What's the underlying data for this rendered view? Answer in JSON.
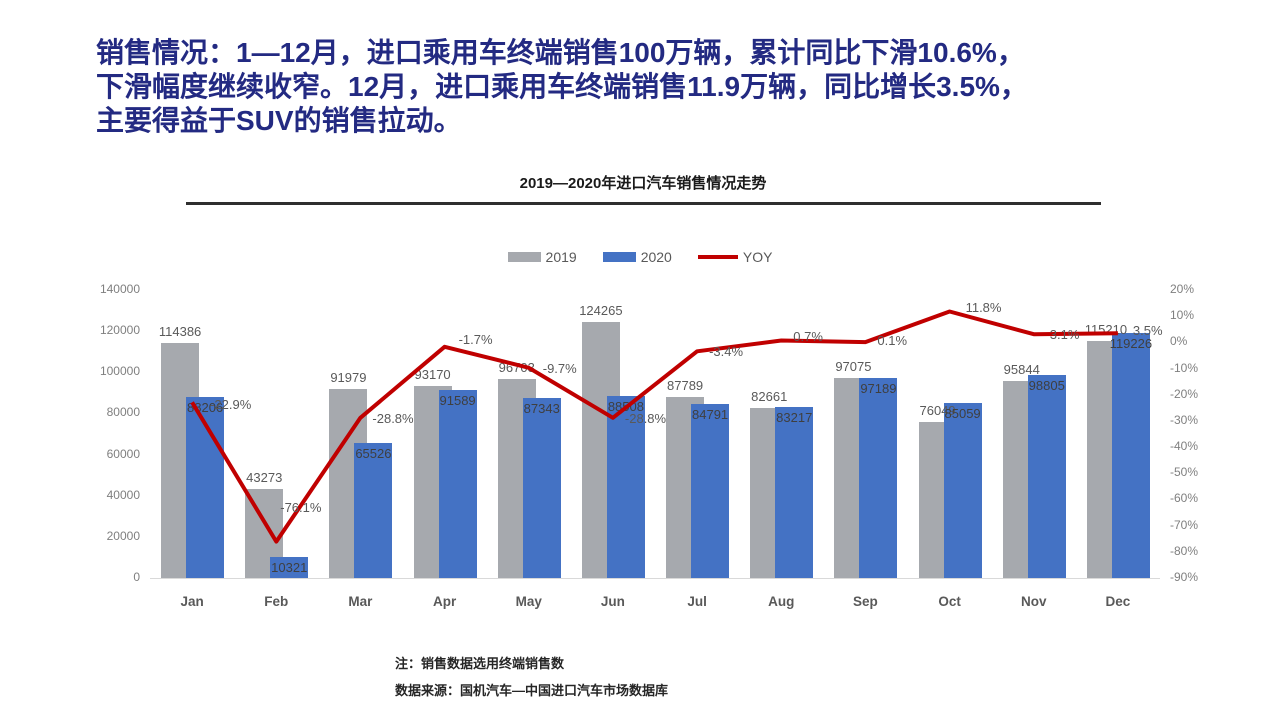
{
  "headline": {
    "lines": [
      "销售情况：1—12月，进口乘用车终端销售100万辆，累计同比下滑10.6%，",
      "下滑幅度继续收窄。12月，进口乘用车终端销售11.9万辆，同比增长3.5%，",
      "主要得益于SUV的销售拉动。"
    ]
  },
  "chart": {
    "title": "2019—2020年进口汽车销售情况走势",
    "legend": [
      {
        "label": "2019",
        "color": "#a6a9ae",
        "type": "box"
      },
      {
        "label": "2020",
        "color": "#4472c4",
        "type": "box"
      },
      {
        "label": "YOY",
        "color": "#c00000",
        "type": "line"
      }
    ]
  },
  "chart_data": {
    "type": "bar+line",
    "title": "2019—2020年进口汽车销售情况走势",
    "categories": [
      "Jan",
      "Feb",
      "Mar",
      "Apr",
      "May",
      "Jun",
      "Jul",
      "Aug",
      "Sep",
      "Oct",
      "Nov",
      "Dec"
    ],
    "series": [
      {
        "name": "2019",
        "type": "bar",
        "axis": "left",
        "color": "#a6a9ae",
        "values": [
          114386,
          43273,
          91979,
          93170,
          96703,
          124265,
          87789,
          82661,
          97075,
          76049,
          95844,
          115210
        ]
      },
      {
        "name": "2020",
        "type": "bar",
        "axis": "left",
        "color": "#4472c4",
        "values": [
          88206,
          10321,
          65526,
          91589,
          87343,
          88508,
          84791,
          83217,
          97189,
          85059,
          98805,
          119226
        ]
      },
      {
        "name": "YOY",
        "type": "line",
        "axis": "right",
        "color": "#c00000",
        "values": [
          -22.9,
          -76.1,
          -28.8,
          -1.7,
          -9.7,
          -28.8,
          -3.4,
          0.7,
          0.1,
          11.8,
          3.1,
          3.5
        ],
        "labels": [
          "-22.9%",
          "-76.1%",
          "-28.8%",
          "-1.7%",
          "-9.7%",
          "-28.8%",
          "-3.4%",
          "0.7%",
          "0.1%",
          "11.8%",
          "3.1%",
          "3.5%"
        ]
      }
    ],
    "left_axis": {
      "min": 0,
      "max": 140000,
      "ticks": [
        "0",
        "20000",
        "40000",
        "60000",
        "80000",
        "100000",
        "120000",
        "140000"
      ]
    },
    "right_axis": {
      "min": -90,
      "max": 20,
      "ticks": [
        "20%",
        "10%",
        "0%",
        "-10%",
        "-20%",
        "-30%",
        "-40%",
        "-50%",
        "-60%",
        "-70%",
        "-80%",
        "-90%"
      ]
    },
    "grid": false,
    "legend_position": "top"
  },
  "notes": {
    "line1": "注：销售数据选用终端销售数",
    "line2": "数据来源：国机汽车—中国进口汽车市场数据库"
  }
}
